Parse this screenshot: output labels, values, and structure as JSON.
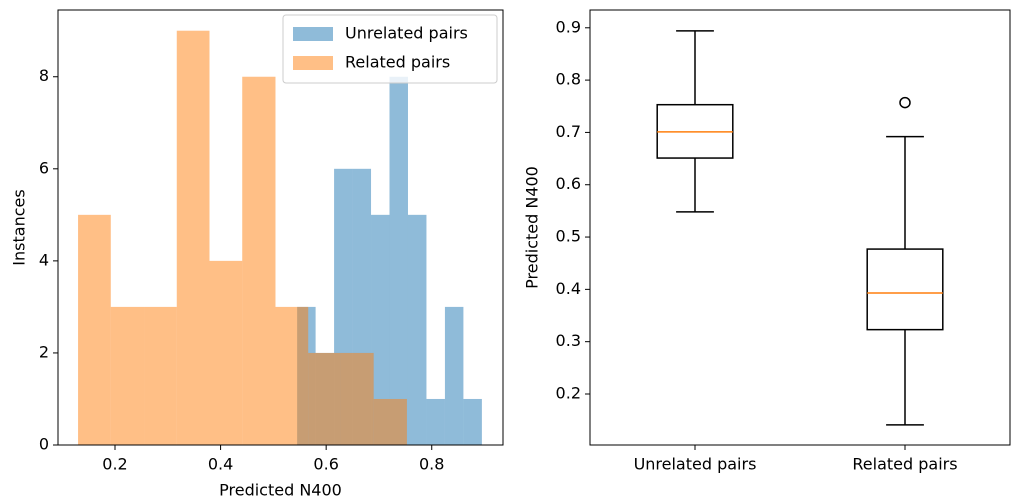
{
  "chart_data": [
    {
      "type": "histogram",
      "xlabel": "Predicted N400",
      "ylabel": "Instances",
      "xlim": [
        0.092,
        0.935
      ],
      "ylim": [
        0,
        9.45
      ],
      "xticks": [
        0.2,
        0.4,
        0.6,
        0.8
      ],
      "yticks": [
        0,
        2,
        4,
        6,
        8
      ],
      "legend": "upper right",
      "series": [
        {
          "name": "Unrelated pairs",
          "color": "#1f77b4",
          "bins": [
            0.545,
            0.58,
            0.615,
            0.65,
            0.685,
            0.72,
            0.755,
            0.79,
            0.825,
            0.86,
            0.895
          ],
          "values": [
            3,
            2,
            6,
            6,
            5,
            8,
            5,
            1,
            3,
            1
          ]
        },
        {
          "name": "Related pairs",
          "color": "#ff7f0e",
          "bins": [
            0.13,
            0.192,
            0.255,
            0.317,
            0.379,
            0.441,
            0.504,
            0.566,
            0.628,
            0.69,
            0.753
          ],
          "values": [
            5,
            3,
            3,
            9,
            4,
            8,
            3,
            2,
            2,
            1
          ]
        }
      ]
    },
    {
      "type": "box",
      "ylabel": "Predicted N400",
      "categories": [
        "Unrelated pairs",
        "Related pairs"
      ],
      "ylim": [
        0.1025,
        0.934
      ],
      "yticks": [
        0.2,
        0.3,
        0.4,
        0.5,
        0.6,
        0.7,
        0.8,
        0.9
      ],
      "median_color": "#ff7f0e",
      "boxes": [
        {
          "whislo": 0.548,
          "q1": 0.651,
          "med": 0.701,
          "q3": 0.753,
          "whishi": 0.894,
          "fliers": []
        },
        {
          "whislo": 0.141,
          "q1": 0.323,
          "med": 0.393,
          "q3": 0.477,
          "whishi": 0.692,
          "fliers": [
            0.757
          ]
        }
      ]
    }
  ]
}
